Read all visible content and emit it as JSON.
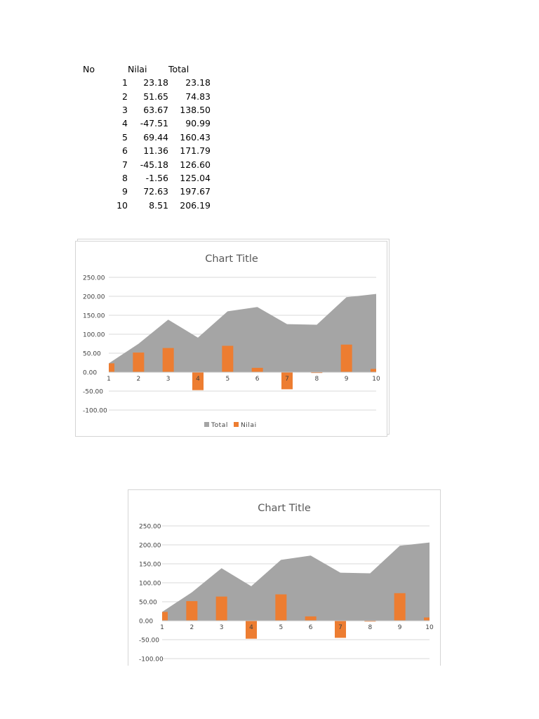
{
  "table": {
    "headers": [
      "No",
      "Nilai",
      "Total"
    ],
    "rows": [
      [
        "1",
        "23.18",
        "23.18"
      ],
      [
        "2",
        "51.65",
        "74.83"
      ],
      [
        "3",
        "63.67",
        "138.50"
      ],
      [
        "4",
        "-47.51",
        "90.99"
      ],
      [
        "5",
        "69.44",
        "160.43"
      ],
      [
        "6",
        "11.36",
        "171.79"
      ],
      [
        "7",
        "-45.18",
        "126.60"
      ],
      [
        "8",
        "-1.56",
        "125.04"
      ],
      [
        "9",
        "72.63",
        "197.67"
      ],
      [
        "10",
        "8.51",
        "206.19"
      ]
    ]
  },
  "colors": {
    "area": "#a5a5a5",
    "bars": "#ed7d31",
    "grid": "#d9d9d9",
    "axis": "#bfbfbf",
    "title": "#595959",
    "tick": "#404040"
  },
  "chart_data": [
    {
      "type": "bar",
      "title": "Chart Title",
      "categories": [
        "1",
        "2",
        "3",
        "4",
        "5",
        "6",
        "7",
        "8",
        "9",
        "10"
      ],
      "series": [
        {
          "name": "Total",
          "type": "area",
          "values": [
            23.18,
            74.83,
            138.5,
            90.99,
            160.43,
            171.79,
            126.6,
            125.04,
            197.67,
            206.19
          ]
        },
        {
          "name": "Nilai",
          "type": "bar",
          "values": [
            23.18,
            51.65,
            63.67,
            -47.51,
            69.44,
            11.36,
            -45.18,
            -1.56,
            72.63,
            8.51
          ]
        }
      ],
      "yticks": [
        "250.00",
        "200.00",
        "150.00",
        "100.00",
        "50.00",
        "0.00",
        "-50.00",
        "-100.00"
      ],
      "ylim": [
        -100,
        250
      ],
      "grid": true,
      "legend": "bottom"
    },
    {
      "type": "bar",
      "title": "Chart Title",
      "categories": [
        "1",
        "2",
        "3",
        "4",
        "5",
        "6",
        "7",
        "8",
        "9",
        "10"
      ],
      "series": [
        {
          "type": "area",
          "values": [
            23.18,
            74.83,
            138.5,
            90.99,
            160.43,
            171.79,
            126.6,
            125.04,
            197.67,
            206.19
          ]
        },
        {
          "type": "bar",
          "values": [
            23.18,
            51.65,
            63.67,
            -47.51,
            69.44,
            11.36,
            -45.18,
            -1.56,
            72.63,
            8.51
          ]
        }
      ],
      "yticks": [
        "250.00",
        "200.00",
        "150.00",
        "100.00",
        "50.00",
        "0.00",
        "-50.00",
        "-100.00"
      ],
      "ylim": [
        -100,
        250
      ],
      "grid": true,
      "legend": "none"
    }
  ]
}
